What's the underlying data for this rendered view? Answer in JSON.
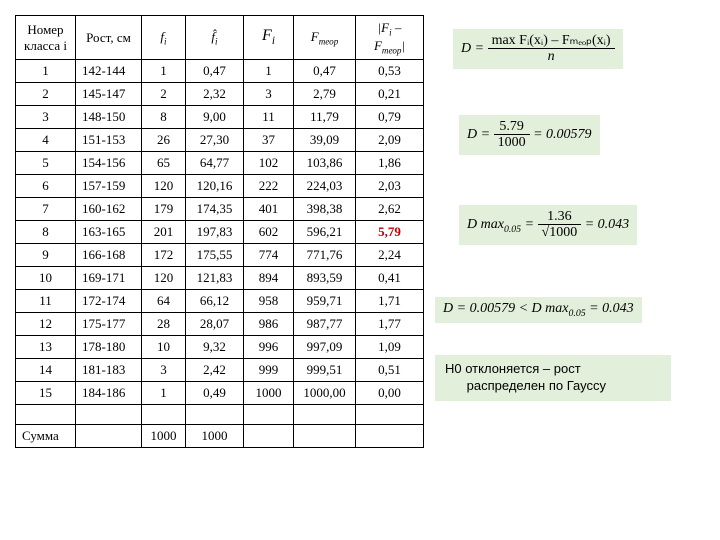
{
  "table": {
    "headers": {
      "col0_line1": "Номер",
      "col0_line2": "класса i",
      "col1": "Рост, см",
      "col2": "fᵢ",
      "col3": "f̂ᵢ",
      "col4": "Fᵢ",
      "col5": "Fₘₑₒₚ",
      "col6": "|Fᵢ – Fₘₑₒₚ|"
    },
    "rows": [
      {
        "i": "1",
        "rost": "142-144",
        "f": "1",
        "fh": "0,47",
        "F": "1",
        "Ft": "0,47",
        "d": "0,53",
        "hl": false
      },
      {
        "i": "2",
        "rost": "145-147",
        "f": "2",
        "fh": "2,32",
        "F": "3",
        "Ft": "2,79",
        "d": "0,21",
        "hl": false
      },
      {
        "i": "3",
        "rost": "148-150",
        "f": "8",
        "fh": "9,00",
        "F": "11",
        "Ft": "11,79",
        "d": "0,79",
        "hl": false
      },
      {
        "i": "4",
        "rost": "151-153",
        "f": "26",
        "fh": "27,30",
        "F": "37",
        "Ft": "39,09",
        "d": "2,09",
        "hl": false
      },
      {
        "i": "5",
        "rost": "154-156",
        "f": "65",
        "fh": "64,77",
        "F": "102",
        "Ft": "103,86",
        "d": "1,86",
        "hl": false
      },
      {
        "i": "6",
        "rost": "157-159",
        "f": "120",
        "fh": "120,16",
        "F": "222",
        "Ft": "224,03",
        "d": "2,03",
        "hl": false
      },
      {
        "i": "7",
        "rost": "160-162",
        "f": "179",
        "fh": "174,35",
        "F": "401",
        "Ft": "398,38",
        "d": "2,62",
        "hl": false
      },
      {
        "i": "8",
        "rost": "163-165",
        "f": "201",
        "fh": "197,83",
        "F": "602",
        "Ft": "596,21",
        "d": "5,79",
        "hl": true
      },
      {
        "i": "9",
        "rost": "166-168",
        "f": "172",
        "fh": "175,55",
        "F": "774",
        "Ft": "771,76",
        "d": "2,24",
        "hl": false
      },
      {
        "i": "10",
        "rost": "169-171",
        "f": "120",
        "fh": "121,83",
        "F": "894",
        "Ft": "893,59",
        "d": "0,41",
        "hl": false
      },
      {
        "i": "11",
        "rost": "172-174",
        "f": "64",
        "fh": "66,12",
        "F": "958",
        "Ft": "959,71",
        "d": "1,71",
        "hl": false
      },
      {
        "i": "12",
        "rost": "175-177",
        "f": "28",
        "fh": "28,07",
        "F": "986",
        "Ft": "987,77",
        "d": "1,77",
        "hl": false
      },
      {
        "i": "13",
        "rost": "178-180",
        "f": "10",
        "fh": "9,32",
        "F": "996",
        "Ft": "997,09",
        "d": "1,09",
        "hl": false
      },
      {
        "i": "14",
        "rost": "181-183",
        "f": "3",
        "fh": "2,42",
        "F": "999",
        "Ft": "999,51",
        "d": "0,51",
        "hl": false
      },
      {
        "i": "15",
        "rost": "184-186",
        "f": "1",
        "fh": "0,49",
        "F": "1000",
        "Ft": "1000,00",
        "d": "0,00",
        "hl": false
      }
    ],
    "sum_label": "Сумма",
    "sum_f": "1000",
    "sum_fh": "1000"
  },
  "formulas": {
    "f1": {
      "lhs": "D =",
      "num": "max Fᵢ(xᵢ) – Fₘₑₒₚ(xᵢ)",
      "den": "n"
    },
    "f2": {
      "lhs": "D =",
      "num": "5.79",
      "den": "1000",
      "rhs": "= 0.00579"
    },
    "f3": {
      "lhs": "D max",
      "sub": "0.05",
      "eq": " =",
      "num": "1.36",
      "den": "√1000",
      "rhs": "= 0.043"
    },
    "f4": {
      "text": "D = 0.00579 < D max₀.₀₅ = 0.043"
    }
  },
  "note": {
    "line1": "Н0 отклоняется – рост",
    "line2": "распределен по Гауссу"
  },
  "style": {
    "formula_bg": "#e2efda",
    "highlight_color": "#c00000"
  }
}
